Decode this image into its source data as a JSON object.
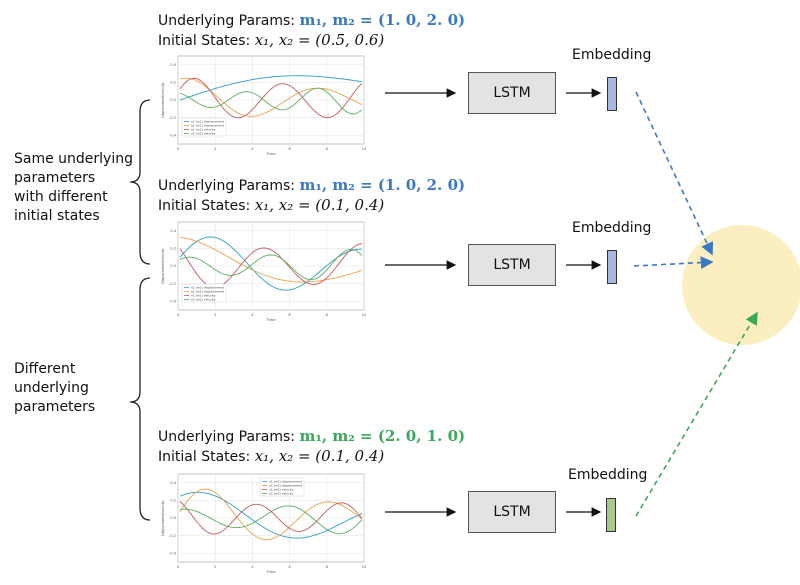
{
  "colors": {
    "blue": "#3b78c4",
    "green": "#3aa85a",
    "emb_blue": "#a9b8e0",
    "emb_green": "#a7c98e",
    "circle": "#fbeec0",
    "series": [
      "#2ca0c8",
      "#e8a54a",
      "#c95b5b",
      "#5fae5f",
      "#8e7fc4"
    ]
  },
  "groups": {
    "same": [
      "Same underlying",
      "parameters",
      "with different",
      "initial states"
    ],
    "different": [
      "Different",
      "underlying",
      "parameters"
    ]
  },
  "panels": [
    {
      "params_prefix": "Underlying Params: ",
      "params_math": "m₁, m₂ = (1. 0, 2. 0)",
      "params_color": "blue",
      "states_prefix": "Initial States: ",
      "states_math": "x₁, x₂ = (0.5, 0.6)",
      "lstm_label": "LSTM",
      "embedding_label": "Embedding",
      "embedding_color": "emb_blue"
    },
    {
      "params_prefix": "Underlying Params: ",
      "params_math": "m₁, m₂ = (1. 0, 2. 0)",
      "params_color": "blue",
      "states_prefix": "Initial States: ",
      "states_math": "x₁, x₂ = (0.1, 0.4)",
      "lstm_label": "LSTM",
      "embedding_label": "Embedding",
      "embedding_color": "emb_blue"
    },
    {
      "params_prefix": "Underlying Params: ",
      "params_math": "m₁, m₂ = (2. 0, 1. 0)",
      "params_color": "green",
      "states_prefix": "Initial States: ",
      "states_math": "x₁, x₂ = (0.1, 0.4)",
      "lstm_label": "LSTM",
      "embedding_label": "Embedding",
      "embedding_color": "emb_green"
    }
  ],
  "plot": {
    "x_ticks": [
      "0",
      "2",
      "4",
      "6",
      "8",
      "10"
    ],
    "y_ticks": [
      "0.4",
      "0.2",
      "0.0",
      "-0.2",
      "-0.4"
    ],
    "xlabel": "Time",
    "ylabel": "Displacement/velocity",
    "legend": [
      "x1 (m1) displacement",
      "x2 (m2) displacement",
      "v1 (m1) velocity",
      "v2 (m2) velocity"
    ]
  }
}
